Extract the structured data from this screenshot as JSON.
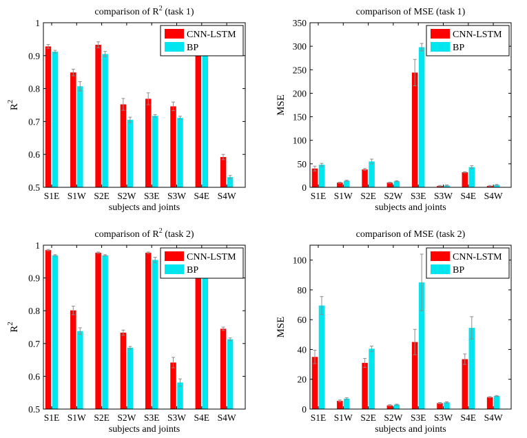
{
  "colors": {
    "series1": "#ff0000",
    "series2": "#00e5ee",
    "axis": "#000000",
    "errorbar": "#8c8c8c"
  },
  "chart_data": [
    {
      "type": "bar",
      "title": "comparison of R",
      "title_sup": "2",
      "title_suffix": " (task 1)",
      "ylabel": "R",
      "ylabel_sup": "2",
      "xlabel": "subjects and joints",
      "categories": [
        "S1E",
        "S1W",
        "S2E",
        "S2W",
        "S3E",
        "S3W",
        "S4E",
        "S4W"
      ],
      "ylim": [
        0.5,
        1
      ],
      "yticks": [
        0.5,
        0.6,
        0.7,
        0.8,
        0.9,
        1
      ],
      "ytick_labels": [
        "0.5",
        "0.6",
        "0.7",
        "0.8",
        "0.9",
        "1"
      ],
      "legend_position": "top-right",
      "series": [
        {
          "name": "CNN-LSTM",
          "values": [
            0.928,
            0.849,
            0.933,
            0.752,
            0.769,
            0.746,
            0.98,
            0.592
          ],
          "errors": [
            0.006,
            0.01,
            0.009,
            0.018,
            0.018,
            0.013,
            0.005,
            0.008
          ]
        },
        {
          "name": "BP",
          "values": [
            0.912,
            0.807,
            0.905,
            0.705,
            0.717,
            0.711,
            0.97,
            0.531
          ],
          "errors": [
            0.004,
            0.014,
            0.008,
            0.008,
            0.004,
            0.005,
            0.005,
            0.005
          ]
        }
      ]
    },
    {
      "type": "bar",
      "title": "comparison of MSE (task 1)",
      "ylabel": "MSE",
      "xlabel": "subjects and joints",
      "categories": [
        "S1E",
        "S1W",
        "S2E",
        "S2W",
        "S3E",
        "S3W",
        "S4E",
        "S4W"
      ],
      "ylim": [
        0,
        350
      ],
      "yticks": [
        0,
        50,
        100,
        150,
        200,
        250,
        300,
        350
      ],
      "ytick_labels": [
        "0",
        "50",
        "100",
        "150",
        "200",
        "250",
        "300",
        "350"
      ],
      "legend_position": "top-right",
      "series": [
        {
          "name": "CNN-LSTM",
          "values": [
            40,
            10,
            38,
            10,
            244,
            3,
            32,
            3
          ],
          "errors": [
            5,
            1,
            2,
            1,
            28,
            1,
            1,
            1
          ]
        },
        {
          "name": "BP",
          "values": [
            48,
            14,
            55,
            13,
            298,
            4,
            43,
            5
          ],
          "errors": [
            3,
            1,
            5,
            1,
            8,
            1,
            3,
            1
          ]
        }
      ]
    },
    {
      "type": "bar",
      "title": "comparison of R",
      "title_sup": "2",
      "title_suffix": " (task 2)",
      "ylabel": "R",
      "ylabel_sup": "2",
      "xlabel": "subjects and joints",
      "categories": [
        "S1E",
        "S1W",
        "S2E",
        "S2W",
        "S3E",
        "S3W",
        "S4E",
        "S4W"
      ],
      "ylim": [
        0.5,
        1
      ],
      "yticks": [
        0.5,
        0.6,
        0.7,
        0.8,
        0.9,
        1
      ],
      "ytick_labels": [
        "0.5",
        "0.6",
        "0.7",
        "0.8",
        "0.9",
        "1"
      ],
      "legend_position": "top-right",
      "series": [
        {
          "name": "CNN-LSTM",
          "values": [
            0.985,
            0.801,
            0.977,
            0.733,
            0.977,
            0.642,
            0.985,
            0.745
          ],
          "errors": [
            0.002,
            0.013,
            0.002,
            0.008,
            0.002,
            0.016,
            0.002,
            0.005
          ]
        },
        {
          "name": "BP",
          "values": [
            0.969,
            0.738,
            0.969,
            0.687,
            0.955,
            0.581,
            0.968,
            0.713
          ],
          "errors": [
            0.002,
            0.01,
            0.002,
            0.004,
            0.008,
            0.011,
            0.002,
            0.004
          ]
        }
      ]
    },
    {
      "type": "bar",
      "title": "comparison of MSE (task 2)",
      "ylabel": "MSE",
      "xlabel": "subjects and joints",
      "categories": [
        "S1E",
        "S1W",
        "S2E",
        "S2W",
        "S3E",
        "S3W",
        "S4E",
        "S4W"
      ],
      "ylim": [
        0,
        110
      ],
      "yticks": [
        0,
        20,
        40,
        60,
        80,
        100
      ],
      "ytick_labels": [
        "0",
        "20",
        "40",
        "60",
        "80",
        "100"
      ],
      "legend_position": "top-right",
      "series": [
        {
          "name": "CNN-LSTM",
          "values": [
            35,
            5.5,
            31,
            2.5,
            45,
            4,
            33.5,
            8
          ],
          "errors": [
            4.5,
            0.6,
            3,
            0.4,
            8.5,
            0.4,
            3.5,
            0.3
          ]
        },
        {
          "name": "BP",
          "values": [
            69.5,
            7,
            40.5,
            3,
            85,
            4.5,
            54.5,
            8.8
          ],
          "errors": [
            6,
            0.6,
            1.8,
            0.3,
            19,
            0.4,
            7.5,
            0.3
          ]
        }
      ]
    }
  ]
}
